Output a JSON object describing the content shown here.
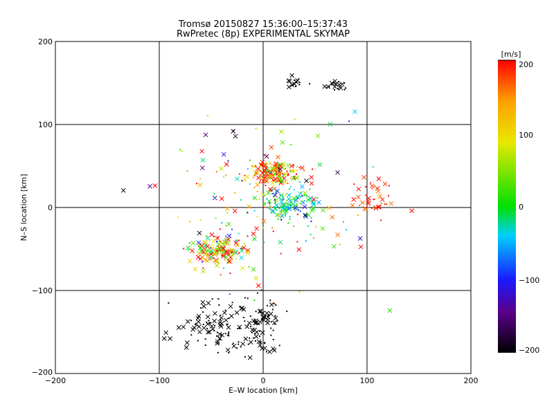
{
  "chart_data": {
    "type": "scatter",
    "title": "Tromsø 20150827 15:36:00–15:37:43",
    "subtitle": "RwPretec (8p) EXPERIMENTAL SKYMAP",
    "xlabel": "E–W location [km]",
    "ylabel": "N–S location [km]",
    "xlim": [
      -200,
      200
    ],
    "ylim": [
      -200,
      200
    ],
    "x_ticks": [
      "−200",
      "−100",
      "0",
      "100",
      "200"
    ],
    "y_ticks": [
      "200",
      "100",
      "0",
      "−100",
      "−200"
    ],
    "grid": true,
    "colorbar": {
      "label": "[m/s]",
      "range": [
        -200,
        200
      ],
      "tick_labels": [
        "200",
        "100",
        "0",
        "−100",
        "−200"
      ],
      "colormap": [
        "#000000",
        "#5a008a",
        "#1a1aff",
        "#00d0ff",
        "#00e000",
        "#e8e800",
        "#ffa000",
        "#ff0000"
      ]
    },
    "markers": {
      "large": "x",
      "small": "dot"
    },
    "point_groups": [
      {
        "name": "cluster-ne",
        "center": [
          10,
          42
        ],
        "spread": [
          20,
          12
        ],
        "count": 170,
        "v_mean": 150,
        "v_sd": 90
      },
      {
        "name": "cluster-central",
        "center": [
          25,
          5
        ],
        "spread": [
          22,
          14
        ],
        "count": 130,
        "v_mean": -10,
        "v_sd": 45
      },
      {
        "name": "cluster-sw",
        "center": [
          -42,
          -50
        ],
        "spread": [
          20,
          14
        ],
        "count": 150,
        "v_mean": 120,
        "v_sd": 110
      },
      {
        "name": "cluster-south",
        "center": [
          -40,
          -140
        ],
        "spread": [
          38,
          25
        ],
        "count": 130,
        "v_mean": -200,
        "v_sd": 5
      },
      {
        "name": "cluster-south-center",
        "center": [
          0,
          -145
        ],
        "spread": [
          12,
          30
        ],
        "count": 60,
        "v_mean": -200,
        "v_sd": 5
      },
      {
        "name": "cluster-north-black",
        "center": [
          30,
          150
        ],
        "spread": [
          10,
          5
        ],
        "count": 18,
        "v_mean": -200,
        "v_sd": 5
      },
      {
        "name": "cluster-north-black-2",
        "center": [
          73,
          148
        ],
        "spread": [
          10,
          5
        ],
        "count": 22,
        "v_mean": -200,
        "v_sd": 5
      },
      {
        "name": "cluster-east-red",
        "center": [
          110,
          10
        ],
        "spread": [
          20,
          20
        ],
        "count": 40,
        "v_mean": 185,
        "v_sd": 20
      },
      {
        "name": "scatter-wide",
        "center": [
          0,
          0
        ],
        "spread": [
          80,
          80
        ],
        "count": 150,
        "v_mean": 60,
        "v_sd": 140
      }
    ]
  }
}
